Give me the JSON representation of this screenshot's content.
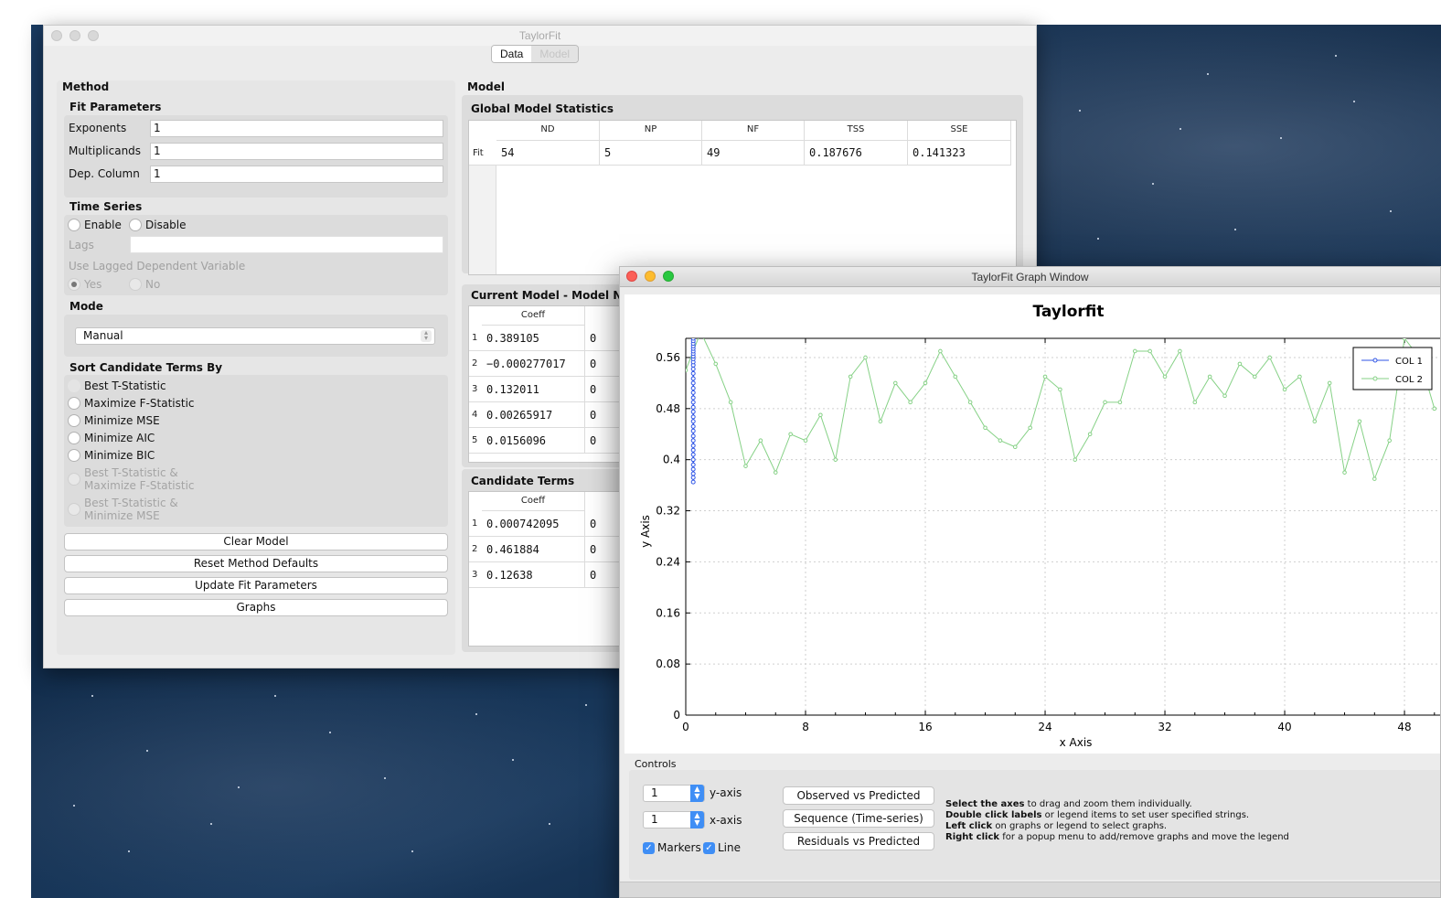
{
  "main_window": {
    "title": "TaylorFit",
    "tabs": [
      "Data",
      "Model"
    ],
    "method": {
      "heading": "Method",
      "fit_parameters": {
        "title": "Fit Parameters",
        "fields": [
          {
            "label": "Exponents",
            "value": "1"
          },
          {
            "label": "Multiplicands",
            "value": "1"
          },
          {
            "label": "Dep. Column",
            "value": "1"
          }
        ]
      },
      "time_series": {
        "title": "Time Series",
        "enable": "Enable",
        "disable": "Disable",
        "lags_label": "Lags",
        "lags_value": "",
        "use_lagged": "Use Lagged Dependent Variable",
        "yes": "Yes",
        "no": "No"
      },
      "mode": {
        "title": "Mode",
        "value": "Manual"
      },
      "sort": {
        "title": "Sort Candidate Terms By",
        "options": [
          {
            "label": "Best T-Statistic",
            "enabled": true
          },
          {
            "label": "Maximize F-Statistic",
            "enabled": true
          },
          {
            "label": "Minimize MSE",
            "enabled": true
          },
          {
            "label": "Minimize AIC",
            "enabled": true
          },
          {
            "label": "Minimize BIC",
            "enabled": true
          },
          {
            "label": "Best T-Statistic &",
            "label2": "Maximize F-Statistic",
            "enabled": false
          },
          {
            "label": "Best T-Statistic &",
            "label2": "Minimize MSE",
            "enabled": false
          }
        ]
      },
      "buttons": [
        "Clear Model",
        "Reset Method Defaults",
        "Update Fit Parameters",
        "Graphs"
      ]
    },
    "model": {
      "heading": "Model",
      "global_stats": {
        "title": "Global Model Statistics",
        "columns": [
          "ND",
          "NP",
          "NF",
          "TSS",
          "SSE"
        ],
        "row_label": "Fit",
        "row": [
          "54",
          "5",
          "49",
          "0.187676",
          "0.141323"
        ]
      },
      "current_model": {
        "title": "Current Model - Model Nu",
        "column": "Coeff",
        "rows": [
          {
            "n": "1",
            "coeff": "0.389105",
            "next": "0"
          },
          {
            "n": "2",
            "coeff": "−0.000277017",
            "next": "0"
          },
          {
            "n": "3",
            "coeff": "0.132011",
            "next": "0"
          },
          {
            "n": "4",
            "coeff": "0.00265917",
            "next": "0"
          },
          {
            "n": "5",
            "coeff": "0.0156096",
            "next": "0"
          }
        ]
      },
      "candidate_terms": {
        "title": "Candidate Terms",
        "column": "Coeff",
        "rows": [
          {
            "n": "1",
            "coeff": "0.000742095",
            "next": "0"
          },
          {
            "n": "2",
            "coeff": "0.461884",
            "next": "0"
          },
          {
            "n": "3",
            "coeff": "0.12638",
            "next": "0"
          }
        ]
      }
    }
  },
  "graph_window": {
    "title": "TaylorFit Graph Window",
    "controls_label": "Controls",
    "y_axis_value": "1",
    "y_axis_label": "y-axis",
    "x_axis_value": "1",
    "x_axis_label": "x-axis",
    "markers_label": "Markers",
    "line_label": "Line",
    "buttons": [
      "Observed vs Predicted",
      "Sequence (Time-series)",
      "Residuals vs Predicted"
    ],
    "help": [
      {
        "bold": "Select the axes",
        "rest": " to drag and zoom them individually."
      },
      {
        "bold": "Double click labels",
        "rest": " or legend items to set user specified strings."
      },
      {
        "bold": "Left click",
        "rest": " on graphs or legend to select graphs."
      },
      {
        "bold": "Right click",
        "rest": " for a popup menu to add/remove graphs and move the legend"
      }
    ]
  },
  "colors": {
    "col1": "#2f55e6",
    "col2": "#86d186",
    "accent": "#3f8ef5"
  },
  "chart_data": {
    "type": "line",
    "title": "Taylorfit",
    "xlabel": "x Axis",
    "ylabel": "y Axis",
    "xlim": [
      0,
      50.5
    ],
    "ylim": [
      0,
      0.59
    ],
    "xticks": [
      0,
      8,
      16,
      24,
      32,
      40,
      48
    ],
    "yticks": [
      0,
      0.08,
      0.16,
      0.24,
      0.32,
      0.4,
      0.48,
      0.56
    ],
    "xtick_labels": [
      "0",
      "8",
      "16",
      "24",
      "32",
      "40",
      "48"
    ],
    "ytick_labels": [
      "0",
      "0.08",
      "0.16",
      "0.24",
      "0.32",
      "0.4",
      "0.48",
      "0.56"
    ],
    "grid": true,
    "legend": "top-right",
    "series": [
      {
        "name": "COL 1",
        "x": [
          0.5,
          0.5,
          0.5,
          0.5,
          0.5,
          0.5,
          0.5,
          0.5,
          0.5,
          0.5,
          0.5,
          0.5,
          0.5,
          0.5,
          0.5,
          0.5,
          0.5,
          0.5,
          0.5,
          0.5,
          0.5,
          0.5,
          0.5,
          0.5,
          0.5,
          0.5,
          0.5,
          0.5,
          0.5,
          0.5,
          0.5,
          0.5,
          0.5,
          0.5,
          0.5,
          0.5
        ],
        "y": [
          0.365,
          0.372,
          0.378,
          0.385,
          0.392,
          0.4,
          0.408,
          0.415,
          0.422,
          0.43,
          0.437,
          0.445,
          0.452,
          0.46,
          0.467,
          0.475,
          0.482,
          0.49,
          0.497,
          0.505,
          0.512,
          0.52,
          0.527,
          0.535,
          0.542,
          0.548,
          0.553,
          0.558,
          0.562,
          0.566,
          0.57,
          0.574,
          0.578,
          0.582,
          0.586,
          0.59
        ]
      },
      {
        "name": "COL 2",
        "x": [
          0,
          1,
          2,
          3,
          4,
          5,
          6,
          7,
          8,
          9,
          10,
          11,
          12,
          13,
          14,
          15,
          16,
          17,
          18,
          19,
          20,
          21,
          22,
          23,
          24,
          25,
          26,
          27,
          28,
          29,
          30,
          31,
          32,
          33,
          34,
          35,
          36,
          37,
          38,
          39,
          40,
          41,
          42,
          43,
          44,
          45,
          46,
          47,
          48,
          49,
          50
        ],
        "y": [
          0.54,
          0.6,
          0.55,
          0.49,
          0.39,
          0.43,
          0.38,
          0.44,
          0.43,
          0.47,
          0.4,
          0.53,
          0.56,
          0.46,
          0.52,
          0.49,
          0.52,
          0.57,
          0.53,
          0.49,
          0.45,
          0.43,
          0.42,
          0.45,
          0.53,
          0.51,
          0.4,
          0.44,
          0.49,
          0.49,
          0.57,
          0.57,
          0.53,
          0.57,
          0.49,
          0.53,
          0.5,
          0.55,
          0.53,
          0.56,
          0.51,
          0.53,
          0.46,
          0.52,
          0.38,
          0.46,
          0.37,
          0.43,
          0.59,
          0.56,
          0.48
        ]
      }
    ]
  }
}
